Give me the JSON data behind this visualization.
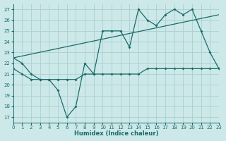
{
  "xlabel": "Humidex (Indice chaleur)",
  "bg_color": "#cce8e8",
  "grid_color": "#aad0d0",
  "line_color": "#1a6b6b",
  "line1_x": [
    0,
    1,
    2,
    3,
    4,
    5,
    6,
    7,
    8,
    9,
    10,
    11,
    12,
    13,
    14,
    15,
    16,
    17,
    18,
    19,
    20,
    21,
    22,
    23
  ],
  "line1_y": [
    22.5,
    22.0,
    21.0,
    20.5,
    20.5,
    19.5,
    17.0,
    18.0,
    22.0,
    21.0,
    25.0,
    25.0,
    25.0,
    23.5,
    27.0,
    26.0,
    25.5,
    26.5,
    27.0,
    26.5,
    27.0,
    25.0,
    23.0,
    21.5
  ],
  "line2_x": [
    0,
    1,
    2,
    3,
    4,
    5,
    6,
    7,
    8,
    9,
    10,
    11,
    12,
    13,
    14,
    15,
    16,
    17,
    18,
    19,
    20,
    21,
    22,
    23
  ],
  "line2_y": [
    21.5,
    21.0,
    20.5,
    20.5,
    20.5,
    20.5,
    20.5,
    20.5,
    21.0,
    21.0,
    21.0,
    21.0,
    21.0,
    21.0,
    21.0,
    21.5,
    21.5,
    21.5,
    21.5,
    21.5,
    21.5,
    21.5,
    21.5,
    21.5
  ],
  "trend_x": [
    0,
    23
  ],
  "trend_y": [
    22.5,
    26.5
  ],
  "xlim": [
    0,
    23
  ],
  "ylim": [
    16.5,
    27.5
  ],
  "yticks": [
    17,
    18,
    19,
    20,
    21,
    22,
    23,
    24,
    25,
    26,
    27
  ],
  "xticks": [
    0,
    1,
    2,
    3,
    4,
    5,
    6,
    7,
    8,
    9,
    10,
    11,
    12,
    13,
    14,
    15,
    16,
    17,
    18,
    19,
    20,
    21,
    22,
    23
  ],
  "xlabel_fontsize": 6,
  "tick_fontsize": 5
}
